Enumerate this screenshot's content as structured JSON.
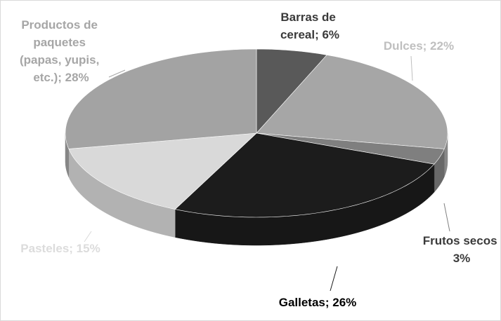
{
  "chart_data": {
    "type": "pie",
    "labels": [
      "Barras de cereal; 6%",
      "Dulces; 22%",
      "Frutos secos 3%",
      "Galletas; 26%",
      "Pasteles; 15%",
      "Productos de paquetes (papas, yupis, etc.); 28%"
    ],
    "values": [
      6,
      22,
      3,
      26,
      15,
      28
    ],
    "colors": [
      "#595959",
      "#a6a6a6",
      "#7f7f7f",
      "#1c1c1c",
      "#d9d9d9",
      "#a3a3a3"
    ],
    "label_colors": [
      "#3a3a3a",
      "#bfbfbf",
      "#3a3a3a",
      "#000000",
      "#dcdcdc",
      "#a6a6a6"
    ]
  }
}
